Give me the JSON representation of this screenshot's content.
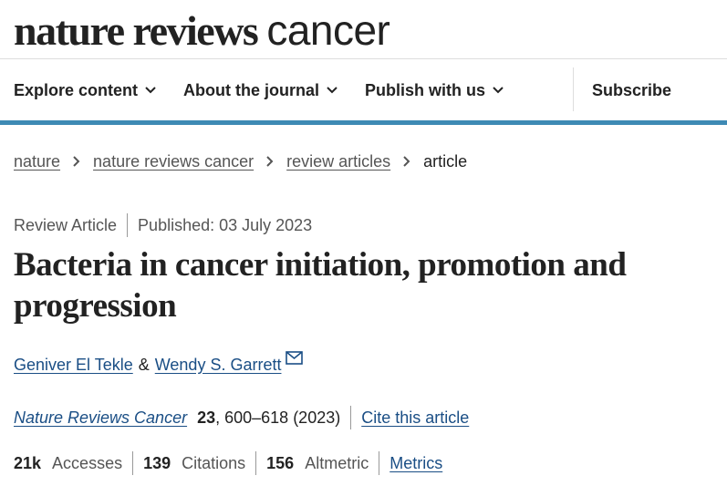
{
  "header": {
    "logo_bold": "nature reviews",
    "logo_light": "cancer"
  },
  "nav": {
    "items": [
      "Explore content",
      "About the journal",
      "Publish with us"
    ],
    "subscribe": "Subscribe"
  },
  "breadcrumbs": [
    "nature",
    "nature reviews cancer",
    "review articles",
    "article"
  ],
  "article": {
    "type": "Review Article",
    "published": "Published: 03 July 2023",
    "title": "Bacteria in cancer initiation, promotion and progression",
    "authors": [
      "Geniver El Tekle",
      "Wendy S. Garrett"
    ],
    "author_join": "&",
    "journal": "Nature Reviews Cancer",
    "volume": "23",
    "pages_year": ", 600–618 (2023)",
    "cite": "Cite this article",
    "metrics": [
      {
        "value": "21k",
        "label": "Accesses"
      },
      {
        "value": "139",
        "label": "Citations"
      },
      {
        "value": "156",
        "label": "Altmetric"
      }
    ],
    "metrics_link": "Metrics"
  }
}
